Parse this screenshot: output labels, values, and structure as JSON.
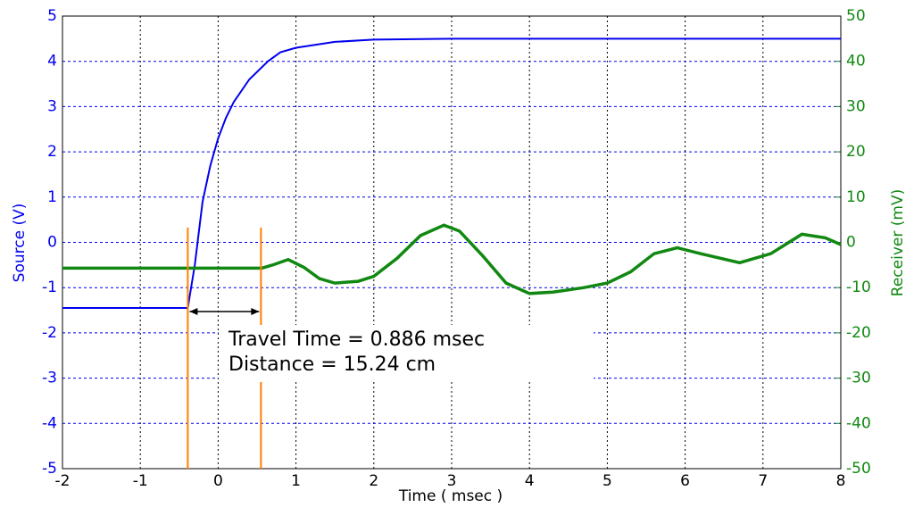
{
  "chart_data": {
    "type": "line",
    "xlabel": "Time ( msec )",
    "ylabel": "Source (V)",
    "y2label": "Receiver (mV)",
    "xlim": [
      -2,
      8
    ],
    "xticks": [
      -2,
      -1,
      0,
      1,
      2,
      3,
      4,
      5,
      6,
      7,
      8
    ],
    "ylim": [
      -5,
      5
    ],
    "yticks": [
      -5,
      -4,
      -3,
      -2,
      -1,
      0,
      1,
      2,
      3,
      4,
      5
    ],
    "y2lim": [
      -50,
      50
    ],
    "y2ticks": [
      -50,
      -40,
      -30,
      -20,
      -10,
      0,
      10,
      20,
      30,
      40,
      50
    ],
    "grid": true,
    "series": [
      {
        "name": "Source",
        "color": "#0000ee",
        "axis": "y",
        "x": [
          -2,
          -0.39,
          -0.3,
          -0.2,
          -0.1,
          0,
          0.1,
          0.2,
          0.4,
          0.64,
          0.8,
          1,
          1.5,
          2,
          3,
          4,
          5,
          6,
          7,
          8
        ],
        "values": [
          -1.45,
          -1.45,
          -0.5,
          0.9,
          1.7,
          2.3,
          2.75,
          3.1,
          3.6,
          4.0,
          4.2,
          4.3,
          4.43,
          4.48,
          4.5,
          4.5,
          4.5,
          4.5,
          4.5,
          4.5
        ]
      },
      {
        "name": "Receiver",
        "color": "#118811",
        "axis": "y2",
        "x": [
          -2,
          0.56,
          0.7,
          0.9,
          1.1,
          1.3,
          1.5,
          1.8,
          2.0,
          2.3,
          2.6,
          2.9,
          3.1,
          3.4,
          3.7,
          4.0,
          4.3,
          4.7,
          5.0,
          5.3,
          5.6,
          5.9,
          6.2,
          6.7,
          7.1,
          7.5,
          7.8,
          8
        ],
        "values": [
          -5.7,
          -5.7,
          -5.0,
          -3.8,
          -5.5,
          -8.0,
          -9.0,
          -8.6,
          -7.5,
          -3.5,
          1.5,
          3.8,
          2.5,
          -3.0,
          -9.0,
          -11.3,
          -11.0,
          -10.0,
          -9.0,
          -6.5,
          -2.5,
          -1.2,
          -2.5,
          -4.5,
          -2.5,
          1.8,
          1.0,
          -0.5
        ]
      }
    ],
    "vlines": [
      -0.39,
      0.55
    ],
    "annotations": [
      "Travel Time = 0.886 msec",
      "Distance = 15.24 cm"
    ]
  }
}
